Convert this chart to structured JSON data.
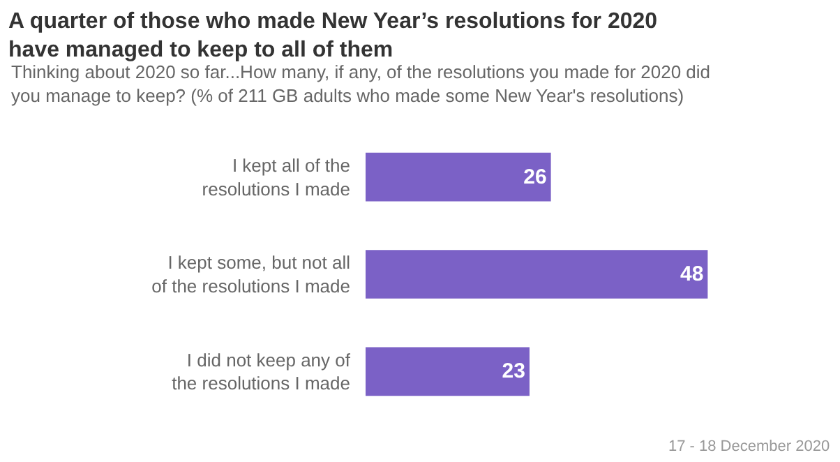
{
  "chart_data": {
    "type": "bar",
    "orientation": "horizontal",
    "title": "A quarter of those who made New Year’s resolutions for 2020 have managed to keep to all of them",
    "subtitle": "Thinking about 2020 so far...How many, if any, of the resolutions you made for 2020 did you manage to keep? (% of 211 GB adults who made some New Year's resolutions)",
    "categories": [
      "I kept all of the resolutions I made",
      "I kept some, but not all of the resolutions I made",
      "I did not keep any of the resolutions I made"
    ],
    "values": [
      26,
      48,
      23
    ],
    "color": "#7b61c6",
    "data_labels": true,
    "annotations": [
      "17 - 18 December 2020"
    ]
  }
}
